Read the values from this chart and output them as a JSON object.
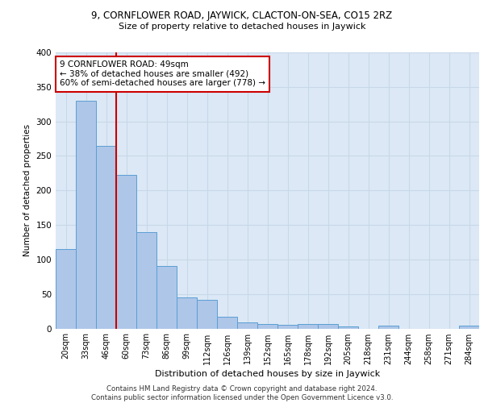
{
  "title_line1": "9, CORNFLOWER ROAD, JAYWICK, CLACTON-ON-SEA, CO15 2RZ",
  "title_line2": "Size of property relative to detached houses in Jaywick",
  "xlabel": "Distribution of detached houses by size in Jaywick",
  "ylabel": "Number of detached properties",
  "categories": [
    "20sqm",
    "33sqm",
    "46sqm",
    "60sqm",
    "73sqm",
    "86sqm",
    "99sqm",
    "112sqm",
    "126sqm",
    "139sqm",
    "152sqm",
    "165sqm",
    "178sqm",
    "192sqm",
    "205sqm",
    "218sqm",
    "231sqm",
    "244sqm",
    "258sqm",
    "271sqm",
    "284sqm"
  ],
  "values": [
    115,
    330,
    265,
    222,
    140,
    90,
    45,
    42,
    17,
    9,
    6,
    5,
    6,
    6,
    3,
    0,
    4,
    0,
    0,
    0,
    4
  ],
  "bar_color": "#aec6e8",
  "bar_edge_color": "#5a9fd4",
  "property_size": "49sqm",
  "pct_smaller": 38,
  "n_smaller": 492,
  "pct_larger_semi": 60,
  "n_larger_semi": 778,
  "annotation_box_color": "#ffffff",
  "annotation_box_edge": "#cc0000",
  "vline_color": "#cc0000",
  "grid_color": "#c8d8e8",
  "background_color": "#dce8f5",
  "ylim": [
    0,
    400
  ],
  "yticks": [
    0,
    50,
    100,
    150,
    200,
    250,
    300,
    350,
    400
  ],
  "footer_line1": "Contains HM Land Registry data © Crown copyright and database right 2024.",
  "footer_line2": "Contains public sector information licensed under the Open Government Licence v3.0."
}
